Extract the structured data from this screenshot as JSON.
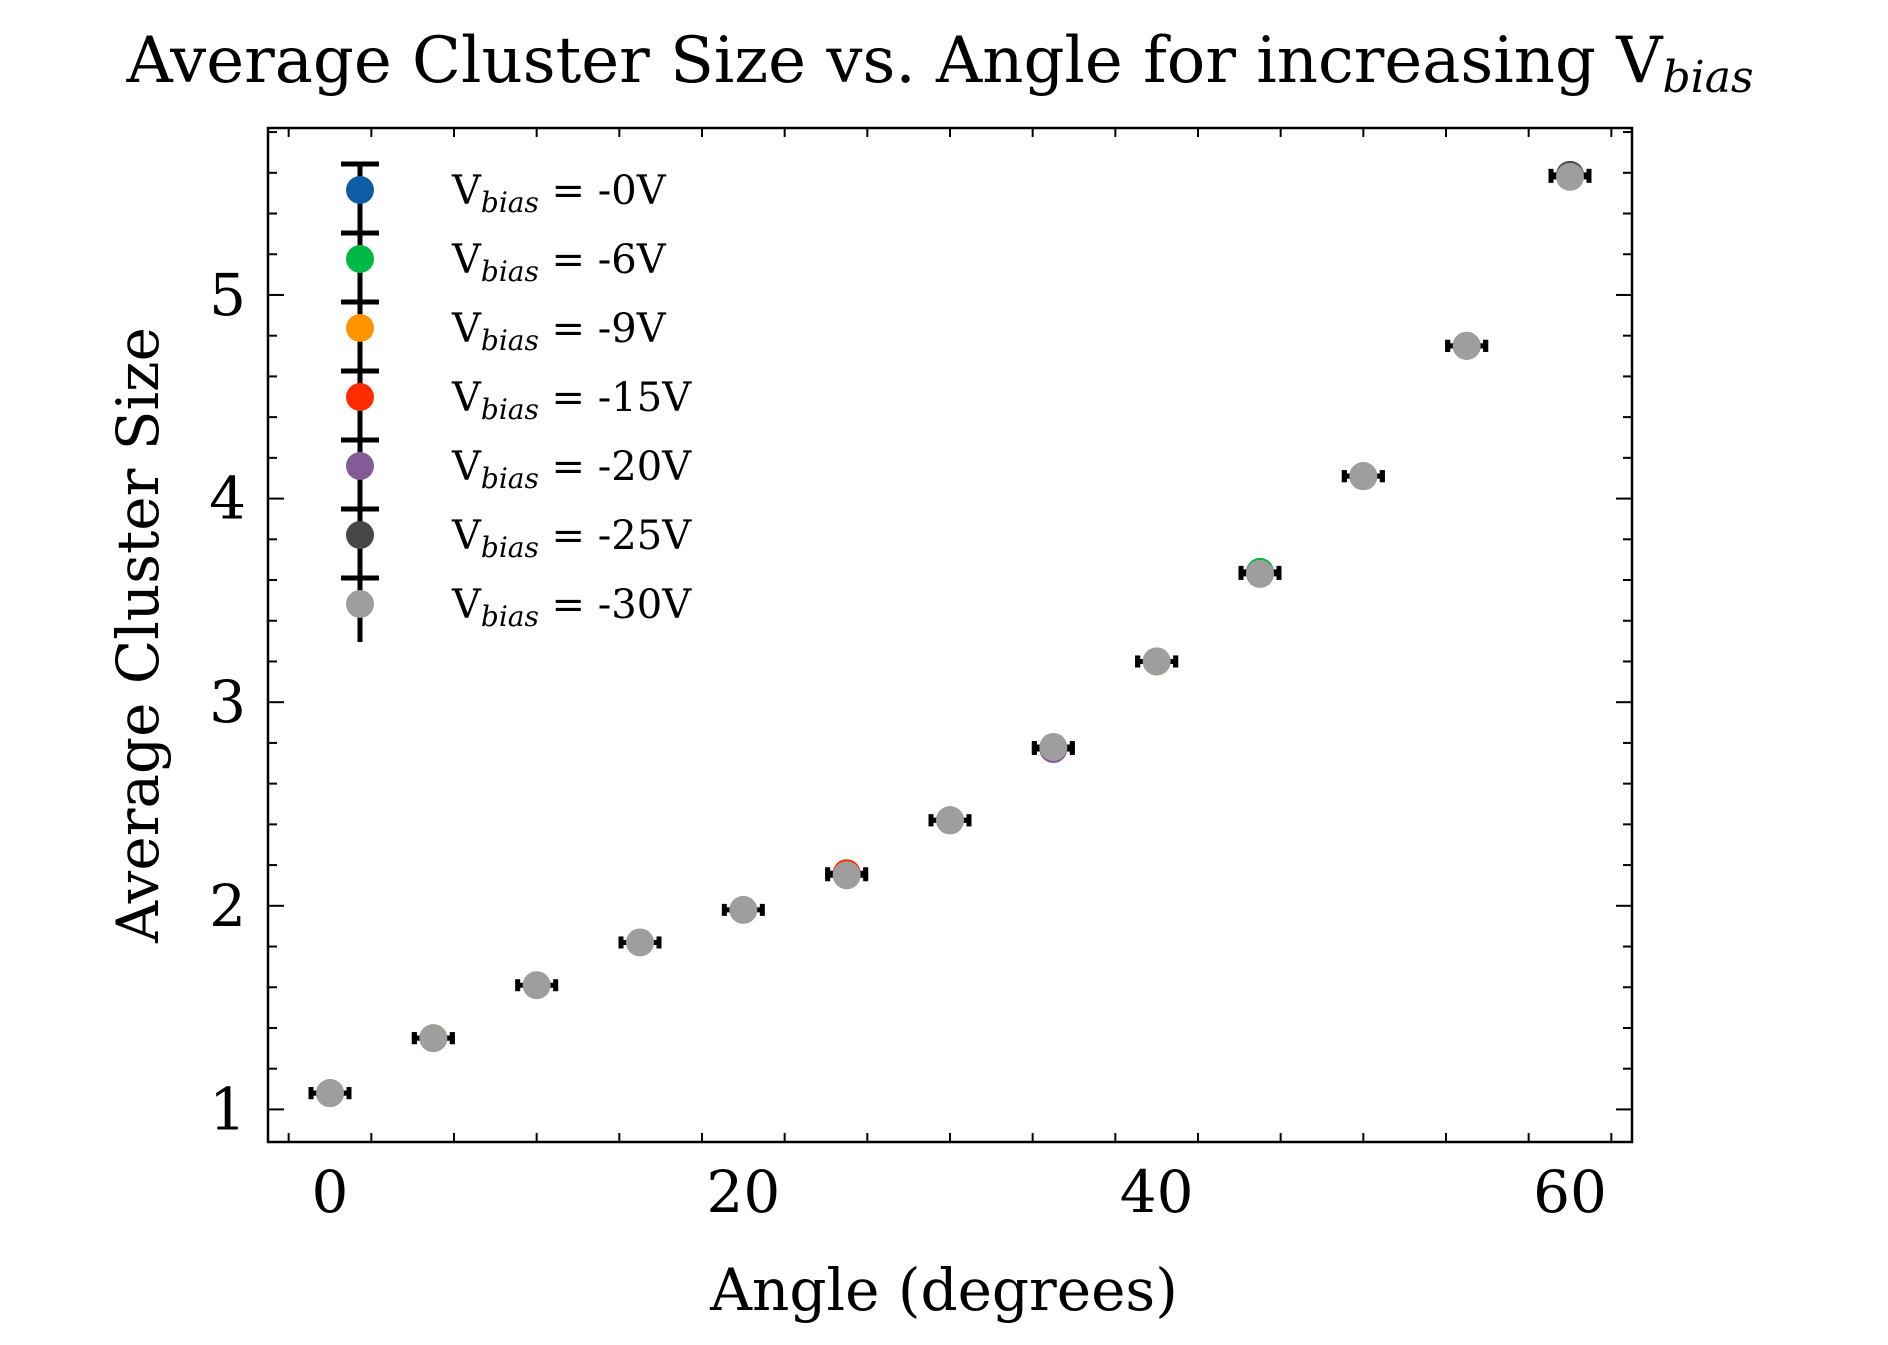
{
  "chart_data": {
    "type": "scatter",
    "title": "Average Cluster Size vs. Angle for increasing V",
    "title_subscript": "bias",
    "xlabel": "Angle (degrees)",
    "ylabel": "Average Cluster Size",
    "xlim": [
      -3,
      63
    ],
    "ylim": [
      0.84,
      5.82
    ],
    "xticks": [
      0,
      20,
      40,
      60
    ],
    "yticks": [
      1,
      2,
      3,
      4,
      5
    ],
    "xtick_labels": [
      "0",
      "20",
      "40",
      "60"
    ],
    "ytick_labels": [
      "1",
      "2",
      "3",
      "4",
      "5"
    ],
    "legend_placement": "top-left",
    "legend_prefix": "V",
    "legend_subscript": "bias",
    "grid": false,
    "error_bar_color": "#000000",
    "series": [
      {
        "name": "-0V",
        "legend_label": " = -0V",
        "color": "#0C5DA5",
        "x": [
          0
        ],
        "y": [
          1.08
        ]
      },
      {
        "name": "-6V",
        "legend_label": " = -6V",
        "color": "#00B945",
        "x": [
          45
        ],
        "y": [
          3.64
        ]
      },
      {
        "name": "-9V",
        "legend_label": " = -9V",
        "color": "#FF9500",
        "x": [
          5,
          40
        ],
        "y": [
          1.35,
          3.2
        ]
      },
      {
        "name": "-15V",
        "legend_label": " = -15V",
        "color": "#FF2C00",
        "x": [
          25
        ],
        "y": [
          2.16
        ]
      },
      {
        "name": "-20V",
        "legend_label": " = -20V",
        "color": "#845B97",
        "x": [
          35,
          50
        ],
        "y": [
          2.77,
          4.11
        ]
      },
      {
        "name": "-25V",
        "legend_label": " = -25V",
        "color": "#474747",
        "x": [
          30,
          55,
          60
        ],
        "y": [
          2.42,
          4.75,
          5.59
        ]
      },
      {
        "name": "-30V",
        "legend_label": " = -30V",
        "color": "#9E9E9E",
        "x": [
          0,
          5,
          10,
          15,
          20,
          25,
          30,
          35,
          40,
          45,
          50,
          55,
          60
        ],
        "y": [
          1.08,
          1.35,
          1.61,
          1.82,
          1.98,
          2.15,
          2.42,
          2.78,
          3.2,
          3.63,
          4.11,
          4.75,
          5.58
        ]
      }
    ]
  }
}
